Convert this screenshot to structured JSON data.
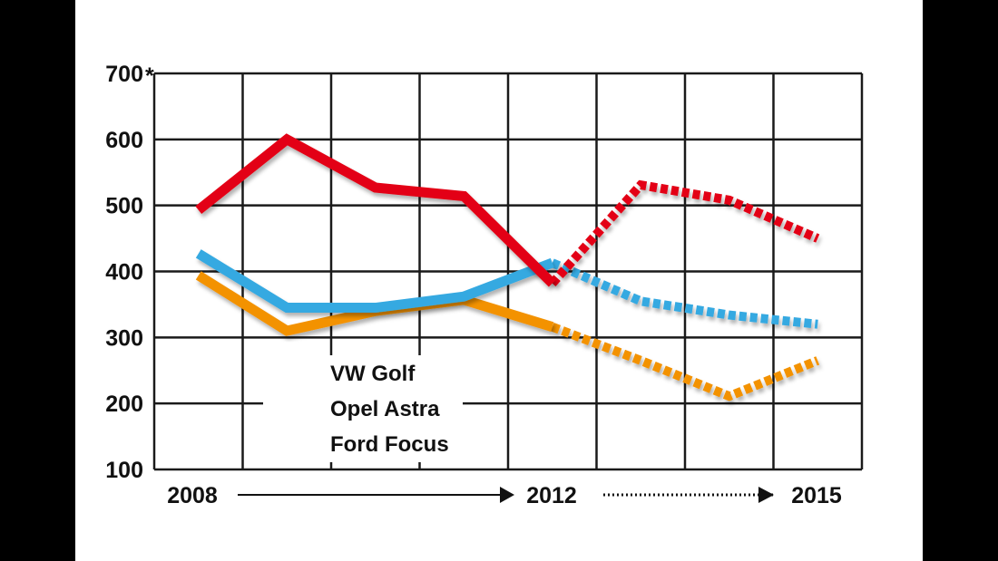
{
  "chart_data": {
    "type": "line",
    "title": "",
    "xlabel": "",
    "ylabel": "",
    "x": [
      2008,
      2009,
      2010,
      2011,
      2012,
      2013,
      2014,
      2015
    ],
    "x_tick_labels": [
      "2008",
      "2012",
      "2015"
    ],
    "y_tick_labels": [
      "100",
      "200",
      "300",
      "400",
      "500",
      "600",
      "700"
    ],
    "y_top_marker": "*",
    "ylim": [
      100,
      700
    ],
    "grid": true,
    "legend_position": "bottom-left inside",
    "solid_until": 2012,
    "dashed_from": 2012,
    "series": [
      {
        "name": "VW Golf",
        "color": "#e30613",
        "values": [
          493,
          600,
          527,
          514,
          382,
          531,
          508,
          450
        ]
      },
      {
        "name": "Opel Astra",
        "color": "#f39200",
        "values": [
          394,
          310,
          340,
          357,
          316,
          265,
          211,
          265
        ]
      },
      {
        "name": "Ford Focus",
        "color": "#36a9e1",
        "values": [
          427,
          345,
          345,
          362,
          413,
          355,
          334,
          320
        ]
      }
    ]
  }
}
